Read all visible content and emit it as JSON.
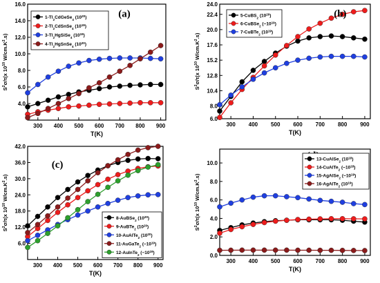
{
  "chart_data": [
    {
      "type": "line",
      "panel_label": "(a)",
      "xlabel": "T(K)",
      "ylabel": "S²σ/τ(x 10¹⁰ W/cm.K².s)",
      "xlim": [
        250,
        925
      ],
      "ylim": [
        2.0,
        16.0
      ],
      "xticks": [
        "300",
        "400",
        "500",
        "600",
        "700",
        "800",
        "900"
      ],
      "yticks": [
        "4.0",
        "6.0",
        "8.0",
        "10.0",
        "12.0",
        "14.0",
        "16.0"
      ],
      "ytick_values": [
        4,
        6,
        8,
        10,
        12,
        14,
        16
      ],
      "legend_position": "top-left",
      "x": [
        250,
        300,
        350,
        400,
        450,
        500,
        550,
        600,
        650,
        700,
        750,
        800,
        850,
        900
      ],
      "series": [
        {
          "name": "1-Tl₂CdGeSe₄ (10²⁰)",
          "color": "#000000",
          "values": [
            3.6,
            4.0,
            4.4,
            4.8,
            5.1,
            5.4,
            5.6,
            5.8,
            6.0,
            6.1,
            6.2,
            6.25,
            6.3,
            6.3
          ]
        },
        {
          "name": "2-Tl₂CdSnSe₄ (10¹⁹)",
          "color": "#ee1c1c",
          "values": [
            2.7,
            3.0,
            3.2,
            3.4,
            3.6,
            3.7,
            3.8,
            3.9,
            3.95,
            4.0,
            4.05,
            4.1,
            4.1,
            4.1
          ]
        },
        {
          "name": "3-Tl₂HgSiSe₄ (10¹⁹)",
          "color": "#1f3fe0",
          "values": [
            5.3,
            6.3,
            7.2,
            7.9,
            8.5,
            8.9,
            9.2,
            9.35,
            9.45,
            9.5,
            9.5,
            9.5,
            9.45,
            9.4
          ]
        },
        {
          "name": "4-Tl₂HgSnSe₄ (10²⁰)",
          "color": "#8b1a1a",
          "values": [
            2.3,
            2.8,
            3.4,
            4.0,
            4.6,
            5.2,
            5.9,
            6.5,
            7.2,
            7.9,
            8.6,
            9.4,
            10.2,
            11.0
          ]
        }
      ]
    },
    {
      "type": "line",
      "panel_label": "(b)",
      "xlabel": "T(K)",
      "ylabel": "S²σ/τ(x 10¹⁰ W/cm.K².s)",
      "xlim": [
        250,
        925
      ],
      "ylim": [
        6.0,
        24.0
      ],
      "xticks": [
        "300",
        "400",
        "500",
        "600",
        "700",
        "800",
        "900"
      ],
      "yticks": [
        "6.0",
        "8.0",
        "10.4",
        "12.8",
        "15.2",
        "17.6",
        "20.0",
        "22.4",
        "24.0"
      ],
      "ytick_values": [
        6.0,
        8.0,
        10.4,
        12.8,
        15.2,
        17.6,
        20.0,
        22.4,
        24.0
      ],
      "legend_position": "top-left",
      "x": [
        250,
        300,
        350,
        400,
        450,
        500,
        550,
        600,
        650,
        700,
        750,
        800,
        850,
        900
      ],
      "series": [
        {
          "name": "5-CuBS₂ (10²⁰)",
          "color": "#000000",
          "values": [
            7.2,
            9.5,
            11.8,
            13.6,
            15.0,
            16.3,
            17.4,
            18.2,
            18.7,
            18.9,
            19.0,
            18.9,
            18.7,
            18.5
          ]
        },
        {
          "name": "6-CuBSe₂ (−10¹⁹)",
          "color": "#ee1c1c",
          "values": [
            6.2,
            8.5,
            10.6,
            12.5,
            14.3,
            16.0,
            17.5,
            18.9,
            20.1,
            21.0,
            21.8,
            22.4,
            22.8,
            23.0
          ]
        },
        {
          "name": "7-CuBTe₂ (10¹⁹)",
          "color": "#1f3fe0",
          "values": [
            8.2,
            9.7,
            11.0,
            12.2,
            13.2,
            14.0,
            14.7,
            15.2,
            15.5,
            15.7,
            15.8,
            15.8,
            15.8,
            15.7
          ]
        }
      ]
    },
    {
      "type": "line",
      "panel_label": "(c)",
      "xlabel": "T(K)",
      "ylabel": "S²σ/τ(x 10¹⁰ W/cm.K².s)",
      "xlim": [
        250,
        925
      ],
      "ylim": [
        0,
        42.0
      ],
      "xticks": [
        "300",
        "400",
        "500",
        "600",
        "700",
        "800",
        "900"
      ],
      "yticks": [
        "6.0",
        "12.0",
        "18.0",
        "24.0",
        "30.0",
        "36.0",
        "42.0"
      ],
      "ytick_values": [
        6,
        12,
        18,
        24,
        30,
        36,
        42
      ],
      "legend_position": "bottom-right",
      "x": [
        250,
        300,
        350,
        400,
        450,
        500,
        550,
        600,
        650,
        700,
        750,
        800,
        850,
        900
      ],
      "series": [
        {
          "name": "8-AuBSe₂ (10²⁰)",
          "color": "#000000",
          "values": [
            12.5,
            16.0,
            19.5,
            23.0,
            26.0,
            28.8,
            31.2,
            33.2,
            34.8,
            36.0,
            36.8,
            37.3,
            37.5,
            37.4
          ]
        },
        {
          "name": "9-AuBTe₂ (10²⁰)",
          "color": "#ee1c1c",
          "values": [
            8.5,
            11.5,
            14.5,
            17.5,
            20.3,
            23.0,
            25.5,
            27.8,
            29.8,
            31.5,
            32.8,
            33.8,
            34.4,
            34.7
          ]
        },
        {
          "name": "10-AuAlTe₂ (10²⁰)",
          "color": "#1f3fe0",
          "values": [
            7.0,
            9.0,
            11.0,
            13.0,
            14.8,
            16.5,
            18.0,
            19.5,
            20.8,
            22.0,
            23.0,
            23.6,
            24.0,
            24.1
          ]
        },
        {
          "name": "11-AuGaTe₂ (−10¹⁹)",
          "color": "#8b1a1a",
          "values": [
            10.0,
            13.0,
            16.2,
            19.5,
            22.8,
            26.0,
            29.2,
            32.2,
            34.8,
            37.0,
            39.0,
            40.6,
            41.5,
            42.0
          ]
        },
        {
          "name": "12-AuInTe₂ (−10¹⁹)",
          "color": "#2ca02c",
          "values": [
            4.5,
            7.0,
            9.7,
            12.5,
            15.5,
            18.5,
            21.5,
            24.2,
            26.8,
            29.2,
            31.3,
            33.0,
            34.3,
            35.2
          ]
        }
      ]
    },
    {
      "type": "line",
      "panel_label": "(d)",
      "xlabel": "T(K)",
      "ylabel": "S²σ/τ(x 10¹⁰ W/cm.K².s)",
      "xlim": [
        250,
        925
      ],
      "ylim": [
        0,
        11.5
      ],
      "xticks": [
        "300",
        "400",
        "500",
        "600",
        "700",
        "800",
        "900"
      ],
      "yticks": [
        "0.0",
        "2.0",
        "4.0",
        "6.0",
        "8.0",
        "10.0"
      ],
      "ytick_values": [
        0,
        2,
        4,
        6,
        8,
        10
      ],
      "legend_position": "top-right",
      "x": [
        250,
        300,
        350,
        400,
        450,
        500,
        550,
        600,
        650,
        700,
        750,
        800,
        850,
        900
      ],
      "series": [
        {
          "name": "13-CuAlSe₂ (10¹⁸)",
          "color": "#000000",
          "values": [
            2.7,
            3.0,
            3.3,
            3.5,
            3.65,
            3.75,
            3.8,
            3.85,
            3.85,
            3.85,
            3.85,
            3.8,
            3.7,
            3.6
          ]
        },
        {
          "name": "14-CuAlTe₂ (−10¹⁸)",
          "color": "#ee1c1c",
          "values": [
            2.4,
            2.8,
            3.1,
            3.35,
            3.55,
            3.7,
            3.8,
            3.88,
            3.92,
            3.95,
            3.97,
            3.97,
            3.96,
            3.95
          ]
        },
        {
          "name": "15-AgAlSe₂ (−10¹⁹)",
          "color": "#1f3fe0",
          "values": [
            5.25,
            5.65,
            6.0,
            6.3,
            6.45,
            6.45,
            6.35,
            6.25,
            6.1,
            5.95,
            5.85,
            5.75,
            5.6,
            5.5
          ]
        },
        {
          "name": "16-AgAlTe₂ (10¹⁹)",
          "color": "#8b1a1a",
          "values": [
            0.55,
            0.56,
            0.57,
            0.57,
            0.57,
            0.57,
            0.57,
            0.56,
            0.56,
            0.55,
            0.55,
            0.54,
            0.53,
            0.52
          ]
        }
      ]
    }
  ]
}
